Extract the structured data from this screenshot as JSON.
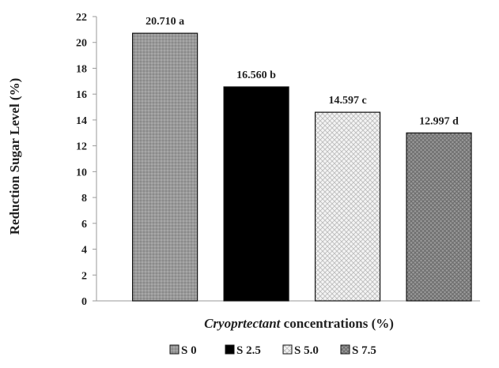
{
  "chart_data": {
    "type": "bar",
    "title": "",
    "ylabel": "Reduction Sugar  Level (%)",
    "xlabel": {
      "italic_part": "Cryoprtectant",
      "rest": " concentrations (%)"
    },
    "ylim": [
      0,
      22
    ],
    "y_ticks": [
      "0",
      "2",
      "4",
      "6",
      "8",
      "10",
      "12",
      "14",
      "16",
      "18",
      "20",
      "22"
    ],
    "grid": false,
    "legend_position": "bottom",
    "series": [
      {
        "name": "S 0",
        "value": 20.71,
        "label": "20.710 a",
        "fill": "gray-diamond"
      },
      {
        "name": "S 2.5",
        "value": 16.56,
        "label": "16.560 b",
        "fill": "#000000"
      },
      {
        "name": "S 5.0",
        "value": 14.597,
        "label": "14.597 c",
        "fill": "light-diamond"
      },
      {
        "name": "S 7.5",
        "value": 12.997,
        "label": "12.997 d",
        "fill": "dark-diamond"
      }
    ]
  }
}
